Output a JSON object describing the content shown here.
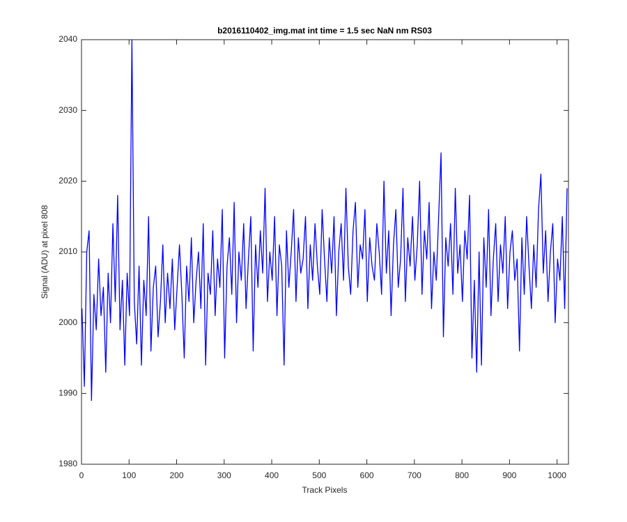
{
  "chart_data": {
    "type": "line",
    "title": "b2016110402_img.mat int time = 1.5 sec  NaN nm RS03",
    "xlabel": "Track Pixels",
    "ylabel": "Signal (ADU) at pixel 808",
    "xlim": [
      0,
      1024
    ],
    "ylim": [
      1980,
      2040
    ],
    "xticks": [
      0,
      100,
      200,
      300,
      400,
      500,
      600,
      700,
      800,
      900,
      1000
    ],
    "yticks": [
      1980,
      1990,
      2000,
      2010,
      2020,
      2030,
      2040
    ],
    "grid": false,
    "series": [
      {
        "color": "#0000ff",
        "x": [
          1,
          6,
          11,
          16,
          21,
          26,
          31,
          36,
          41,
          46,
          51,
          56,
          61,
          66,
          71,
          76,
          81,
          86,
          91,
          96,
          101,
          106,
          111,
          116,
          121,
          126,
          131,
          136,
          141,
          146,
          151,
          156,
          161,
          166,
          171,
          176,
          181,
          186,
          191,
          196,
          201,
          206,
          211,
          216,
          221,
          226,
          231,
          236,
          241,
          246,
          251,
          256,
          261,
          266,
          271,
          276,
          281,
          286,
          291,
          296,
          301,
          306,
          311,
          316,
          321,
          326,
          331,
          336,
          341,
          346,
          351,
          356,
          361,
          366,
          371,
          376,
          381,
          386,
          391,
          396,
          401,
          406,
          411,
          416,
          421,
          426,
          431,
          436,
          441,
          446,
          451,
          456,
          461,
          466,
          471,
          476,
          481,
          486,
          491,
          496,
          501,
          506,
          511,
          516,
          521,
          526,
          531,
          536,
          541,
          546,
          551,
          556,
          561,
          566,
          571,
          576,
          581,
          586,
          591,
          596,
          601,
          606,
          611,
          616,
          621,
          626,
          631,
          636,
          641,
          646,
          651,
          656,
          661,
          666,
          671,
          676,
          681,
          686,
          691,
          696,
          701,
          706,
          711,
          716,
          721,
          726,
          731,
          736,
          741,
          746,
          751,
          756,
          761,
          766,
          771,
          776,
          781,
          786,
          791,
          796,
          801,
          806,
          811,
          816,
          821,
          826,
          831,
          836,
          841,
          846,
          851,
          856,
          861,
          866,
          871,
          876,
          881,
          886,
          891,
          896,
          901,
          906,
          911,
          916,
          921,
          926,
          931,
          936,
          941,
          946,
          951,
          956,
          961,
          966,
          971,
          976,
          981,
          986,
          991,
          996,
          1001,
          1006,
          1011,
          1016,
          1021
        ],
        "values": [
          2002,
          1991,
          2010,
          2013,
          1989,
          2004,
          1999,
          2009,
          2001,
          2005,
          1993,
          2007,
          2000,
          2014,
          2003,
          2018,
          1999,
          2006,
          1994,
          2007,
          2001,
          2040,
          2003,
          1997,
          2008,
          1994,
          2006,
          2001,
          2015,
          1996,
          2005,
          2008,
          1998,
          2003,
          2011,
          2000,
          2007,
          2002,
          2009,
          1999,
          2005,
          2011,
          2004,
          1995,
          2008,
          2003,
          2012,
          2000,
          2006,
          2010,
          2002,
          2014,
          1994,
          2007,
          2004,
          2013,
          2001,
          2009,
          2005,
          2016,
          1995,
          2008,
          2012,
          2004,
          2017,
          2000,
          2010,
          2006,
          2014,
          2002,
          2009,
          2015,
          1996,
          2011,
          2005,
          2013,
          2007,
          2019,
          2003,
          2010,
          2006,
          2015,
          2001,
          2011,
          2008,
          1994,
          2013,
          2005,
          2010,
          2016,
          2003,
          2012,
          2007,
          2009,
          2015,
          2002,
          2011,
          2006,
          2014,
          2008,
          2004,
          2016,
          2009,
          2003,
          2012,
          2007,
          2015,
          2001,
          2010,
          2014,
          2006,
          2019,
          2008,
          2004,
          2013,
          2017,
          2005,
          2011,
          2009,
          2016,
          2003,
          2012,
          2008,
          2006,
          2014,
          2010,
          2004,
          2020,
          2007,
          2013,
          2001,
          2011,
          2016,
          2005,
          2009,
          2019,
          2003,
          2012,
          2008,
          2015,
          2006,
          2011,
          2020,
          2004,
          2013,
          2009,
          2017,
          2002,
          2010,
          2006,
          2015,
          2024,
          1998,
          2012,
          2008,
          2014,
          2004,
          2019,
          2007,
          2011,
          2003,
          2013,
          2009,
          2018,
          1995,
          2006,
          1993,
          2010,
          1994,
          2012,
          2005,
          2016,
          2001,
          2009,
          2014,
          2003,
          2011,
          2007,
          2015,
          2002,
          2010,
          2013,
          2006,
          2009,
          1996,
          2012,
          2004,
          2015,
          2008,
          2002,
          2011,
          2005,
          2016,
          2021,
          2007,
          2013,
          2003,
          2010,
          2014,
          2000,
          2009,
          2006,
          2015,
          2002,
          2019
        ]
      }
    ]
  }
}
